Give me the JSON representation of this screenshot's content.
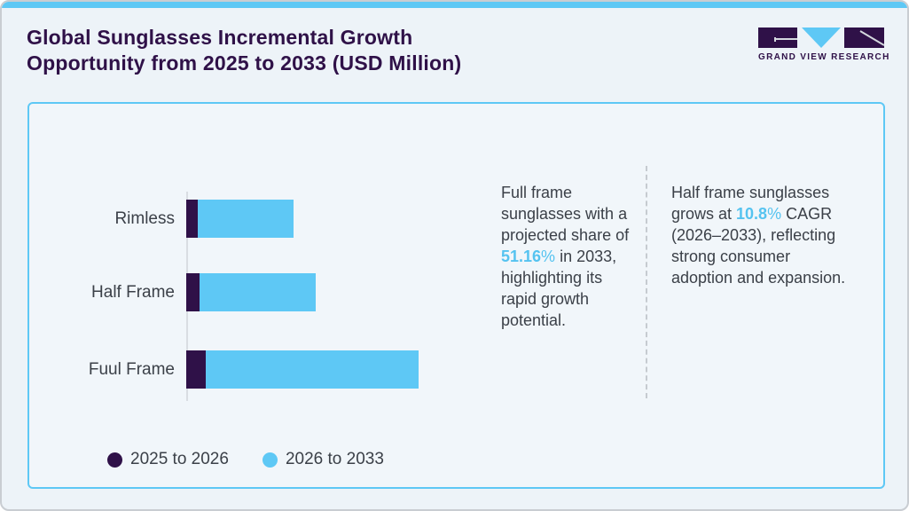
{
  "page": {
    "title_line1": "Global Sunglasses Incremental Growth",
    "title_line2": "Opportunity from 2025 to 2033 (USD Million)"
  },
  "logo": {
    "text": "GRAND VIEW RESEARCH"
  },
  "colors": {
    "accent_blue": "#5ec8f5",
    "dark_purple": "#2f1148",
    "body_text": "#3b4048",
    "highlight_blue": "#55c3f0",
    "axis_gray": "#d9dde2"
  },
  "chart_data": {
    "type": "bar",
    "orientation": "horizontal",
    "stacked": true,
    "title": "Global Sunglasses Incremental Growth Opportunity from 2025 to 2033 (USD Million)",
    "categories": [
      "Rimless",
      "Half Frame",
      "Fuul Frame"
    ],
    "series": [
      {
        "name": "2025 to 2026",
        "color": "#2f1148",
        "values": [
          13,
          15,
          22
        ]
      },
      {
        "name": "2026 to 2033",
        "color": "#5ec8f5",
        "values": [
          108,
          131,
          240
        ]
      }
    ],
    "note": "No numeric value axis shown in source; values are relative bar lengths (px) measured from the image",
    "grid": false,
    "legend_position": "bottom-left"
  },
  "annotations": [
    {
      "segments": [
        {
          "text": "Full frame sunglasses with a projected share of "
        },
        {
          "text": "51.16",
          "style": "hlb"
        },
        {
          "text": "%",
          "style": "hl"
        },
        {
          "text": " in 2033, highlighting its rapid growth potential."
        }
      ]
    },
    {
      "segments": [
        {
          "text": "Half frame sunglasses grows at "
        },
        {
          "text": "10.8",
          "style": "hlb"
        },
        {
          "text": "%",
          "style": "hl"
        },
        {
          "text": " CAGR (2026–2033), reflecting strong consumer adoption and expansion."
        }
      ]
    }
  ]
}
